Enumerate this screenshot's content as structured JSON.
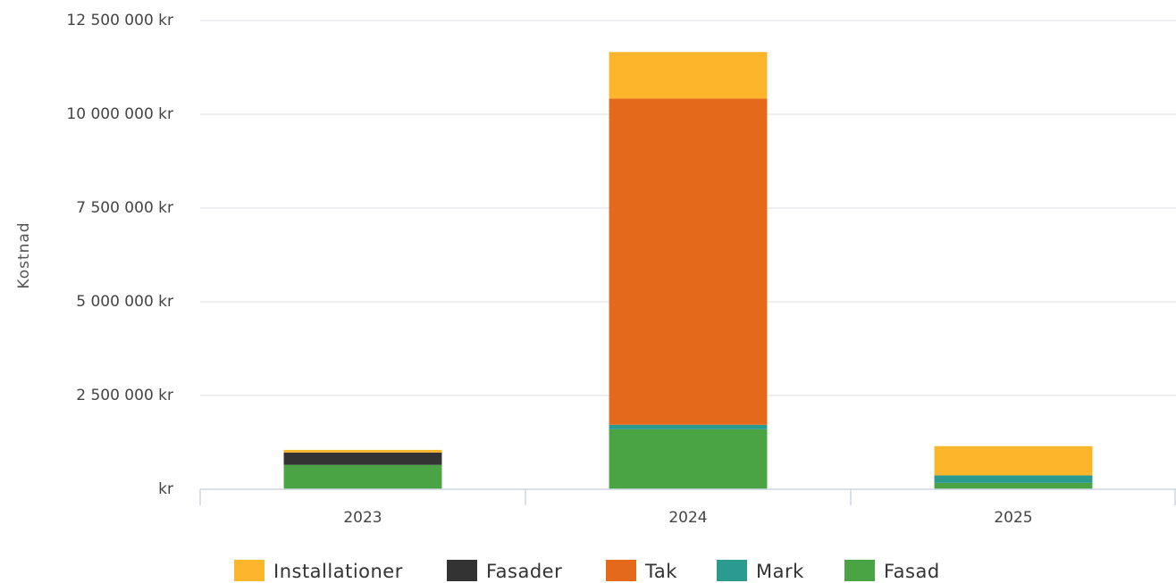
{
  "chart_data": {
    "type": "bar",
    "stacked": true,
    "categories": [
      "2023",
      "2024",
      "2025"
    ],
    "ylabel": "Kostnad",
    "ylim": [
      0,
      12500000
    ],
    "y_ticks": [
      0,
      2500000,
      5000000,
      7500000,
      10000000,
      12500000
    ],
    "y_tick_labels": [
      "kr",
      "2 500 000 kr",
      "5 000 000 kr",
      "7 500 000 kr",
      "10 000 000 kr",
      "12 500 000 kr"
    ],
    "grid": true,
    "legend_position": "bottom",
    "series": [
      {
        "name": "Fasad",
        "color": "#4aa444",
        "values": [
          650000,
          1600000,
          170000
        ]
      },
      {
        "name": "Mark",
        "color": "#2a9b8e",
        "values": [
          0,
          120000,
          200000
        ]
      },
      {
        "name": "Tak",
        "color": "#e5691a",
        "values": [
          0,
          8700000,
          0
        ]
      },
      {
        "name": "Fasader",
        "color": "#333333",
        "values": [
          330000,
          0,
          0
        ]
      },
      {
        "name": "Installationer",
        "color": "#fdb62b",
        "values": [
          70000,
          1240000,
          780000
        ]
      }
    ],
    "legend_order": [
      "Installationer",
      "Fasader",
      "Tak",
      "Mark",
      "Fasad"
    ]
  }
}
